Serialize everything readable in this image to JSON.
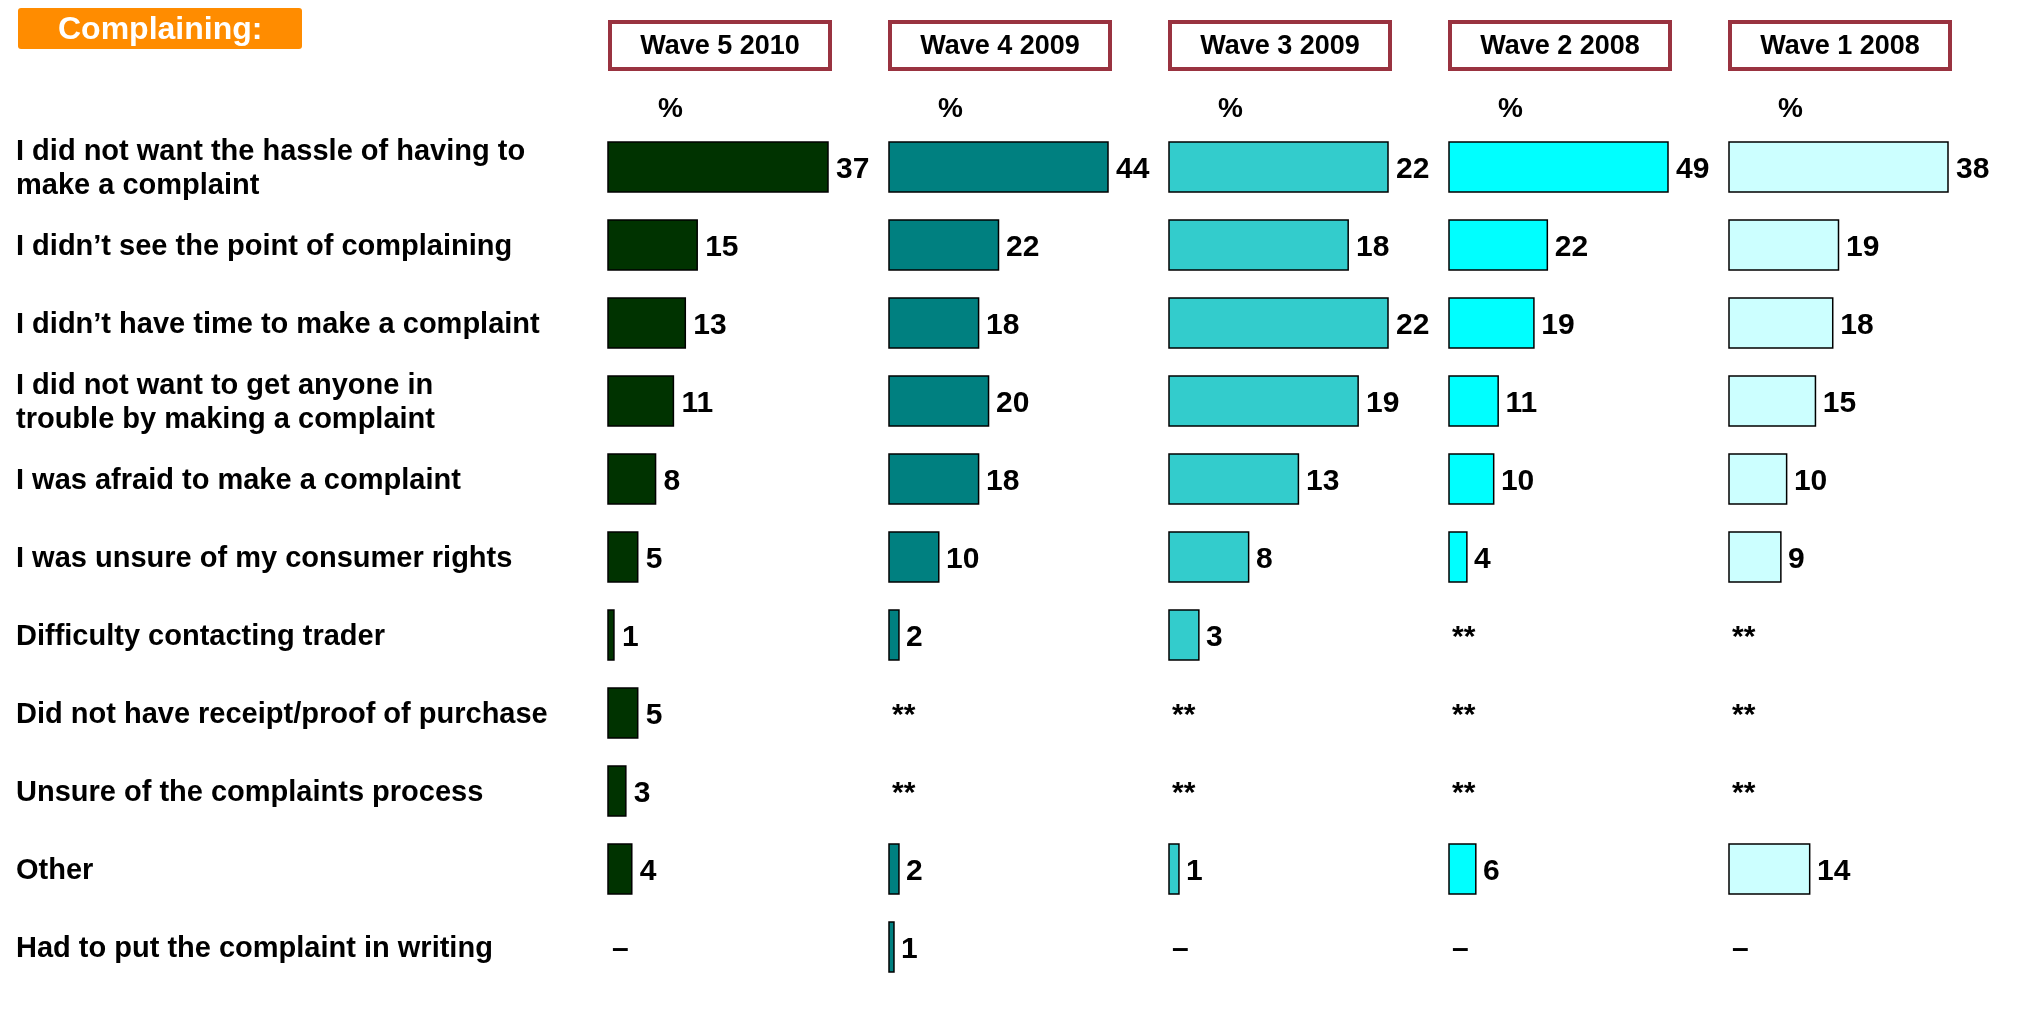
{
  "chart_data": [
    {
      "type": "bar",
      "orientation": "horizontal",
      "title": "Wave 5 2010",
      "xlabel": "%",
      "annotations": [
        "Complaining:"
      ],
      "tick_labels": "y",
      "categories": [
        "I did not want the hassle of having to make a complaint",
        "I didn’t see the point of complaining",
        "I didn’t have time to make a complaint",
        "I did not want to get anyone in trouble by making a complaint",
        "I was afraid to make a complaint",
        "I was unsure of my consumer rights",
        "Difficulty contacting trader",
        "Did not have receipt/proof of purchase",
        "Unsure of the complaints process",
        "Other",
        "Had to put the complaint in writing"
      ],
      "color": "#003300",
      "values": [
        37,
        15,
        13,
        11,
        8,
        5,
        1,
        5,
        3,
        4,
        null
      ],
      "value_labels": [
        "37",
        "15",
        "13",
        "11",
        "8",
        "5",
        "1",
        "5",
        "3",
        "4",
        "–"
      ]
    },
    {
      "type": "bar",
      "orientation": "horizontal",
      "title": "Wave 4 2009",
      "xlabel": "%",
      "tick_labels": false,
      "categories": [
        null,
        null,
        null,
        null,
        null,
        null,
        null,
        null,
        null,
        null,
        null
      ],
      "color": "#008080",
      "values": [
        44,
        22,
        18,
        20,
        18,
        10,
        2,
        null,
        null,
        2,
        1
      ],
      "value_labels": [
        "44",
        "22",
        "18",
        "20",
        "18",
        "10",
        "2",
        "**",
        "**",
        "2",
        "1"
      ]
    },
    {
      "type": "bar",
      "orientation": "horizontal",
      "title": "Wave 3 2009",
      "xlabel": "%",
      "tick_labels": false,
      "categories": [
        null,
        null,
        null,
        null,
        null,
        null,
        null,
        null,
        null,
        null,
        null
      ],
      "color": "#33cccc",
      "values": [
        22,
        18,
        22,
        19,
        13,
        8,
        3,
        null,
        null,
        1,
        null
      ],
      "value_labels": [
        "22",
        "18",
        "22",
        "19",
        "13",
        "8",
        "3",
        "**",
        "**",
        "1",
        "–"
      ]
    },
    {
      "type": "bar",
      "orientation": "horizontal",
      "title": "Wave 2 2008",
      "xlabel": "%",
      "tick_labels": false,
      "categories": [
        null,
        null,
        null,
        null,
        null,
        null,
        null,
        null,
        null,
        null,
        null
      ],
      "color": "#00ffff",
      "values": [
        49,
        22,
        19,
        11,
        10,
        4,
        null,
        null,
        null,
        6,
        null
      ],
      "value_labels": [
        "49",
        "22",
        "19",
        "11",
        "10",
        "4",
        "**",
        "**",
        "**",
        "6",
        "–"
      ]
    },
    {
      "type": "bar",
      "orientation": "horizontal",
      "title": "Wave 1 2008",
      "xlabel": "%",
      "tick_labels": false,
      "categories": [
        null,
        null,
        null,
        null,
        null,
        null,
        null,
        null,
        null,
        null,
        null
      ],
      "color": "#ccffff",
      "values": [
        38,
        19,
        18,
        15,
        10,
        9,
        null,
        null,
        null,
        14,
        null
      ],
      "value_labels": [
        "38",
        "19",
        "18",
        "15",
        "10",
        "9",
        "**",
        "**",
        "**",
        "14",
        "–"
      ]
    }
  ]
}
